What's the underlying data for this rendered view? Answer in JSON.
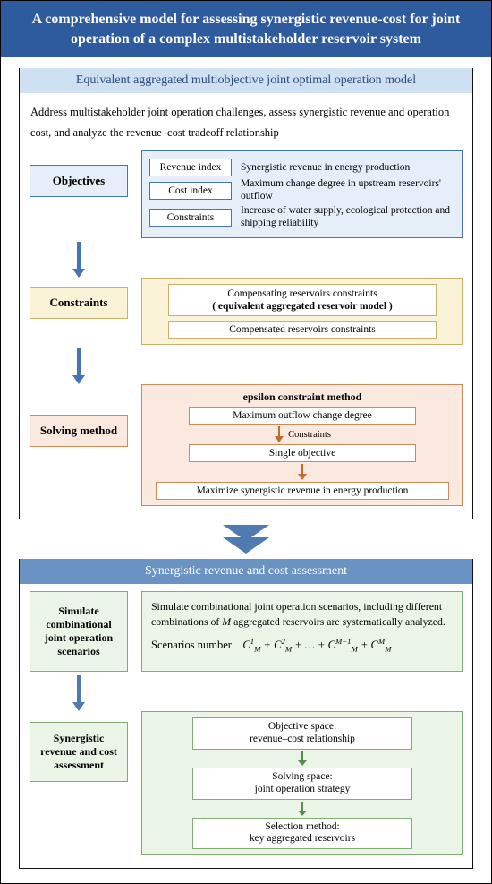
{
  "colors": {
    "title_bg": "#2e5a9e",
    "panel1_title_bg": "#cfe0f2",
    "panel2_title_bg": "#6a92c2",
    "blue_fill": "#e5eef9",
    "blue_border": "#4476b5",
    "yellow_fill": "#fbf3d8",
    "yellow_border": "#cbb06a",
    "orange_fill": "#fbe8de",
    "orange_border": "#d08a5a",
    "green_fill": "#eaf4e7",
    "green_border": "#7fae74",
    "arrow_blue": "#4476b5",
    "arrow_orange": "#d08a5a",
    "arrow_green": "#5a8a52"
  },
  "fonts": {
    "base_family": "Times New Roman",
    "title_pt": 16,
    "body_pt": 12,
    "small_pt": 11
  },
  "main_title": "A comprehensive model for assessing synergistic revenue-cost for joint operation of a complex multistakeholder reservoir system",
  "panel1": {
    "title": "Equivalent aggregated multiobjective joint optimal operation model",
    "description": "Address multistakeholder joint operation challenges, assess synergistic revenue and operation cost, and analyze the revenue–cost tradeoff relationship",
    "objectives": {
      "label": "Objectives",
      "items": [
        {
          "name": "Revenue index",
          "text": "Synergistic revenue in energy production"
        },
        {
          "name": "Cost index",
          "text": "Maximum change degree in upstream reservoirs' outflow"
        },
        {
          "name": "Constraints",
          "text": "Increase of water supply, ecological protection and shipping reliability"
        }
      ]
    },
    "constraints": {
      "label": "Constraints",
      "items": [
        "Compensating reservoirs constraints",
        "( equivalent aggregated reservoir model )",
        "Compensated reservoirs constraints"
      ]
    },
    "solving": {
      "label": "Solving method",
      "heading": "epsilon constraint method",
      "step1": "Maximum outflow change degree",
      "arrow1_label": "Constraints",
      "step2": "Single objective",
      "step3": "Maximize synergistic revenue in energy production"
    }
  },
  "panel2": {
    "title": "Synergistic revenue and cost assessment",
    "simulate": {
      "label": "Simulate combinational joint operation scenarios",
      "text": "Simulate combinational joint operation scenarios, including different combinations of M aggregated reservoirs are systematically analyzed.",
      "formula_label": "Scenarios number"
    },
    "assessment": {
      "label": "Synergistic revenue and cost assessment",
      "steps": [
        {
          "a": "Objective space:",
          "b": "revenue–cost relationship"
        },
        {
          "a": "Solving space:",
          "b": "joint operation strategy"
        },
        {
          "a": "Selection method:",
          "b": "key aggregated reservoirs"
        }
      ]
    }
  }
}
